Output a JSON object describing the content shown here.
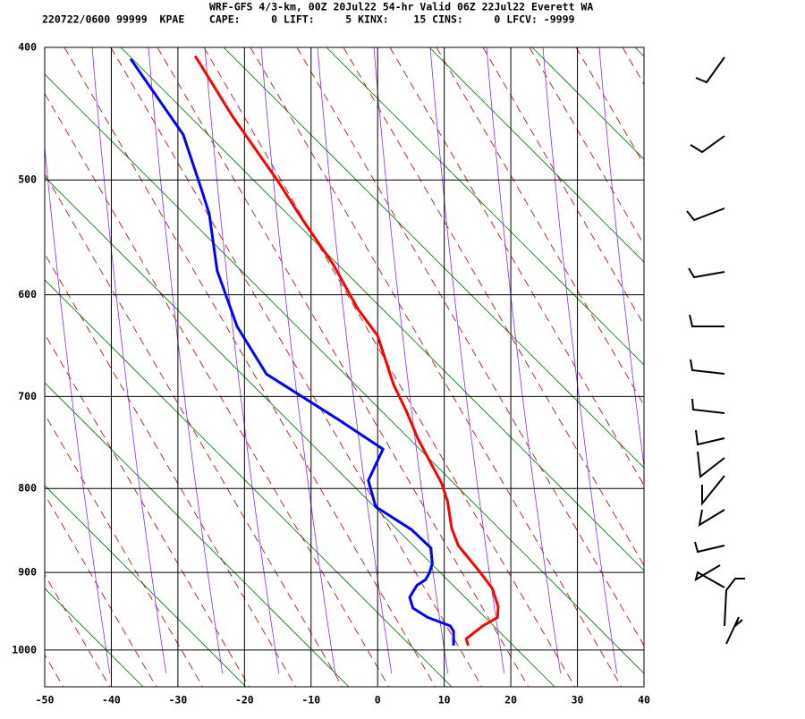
{
  "chart_data": {
    "type": "line",
    "title": "WRF-GFS 4/3-km, 00Z 20Jul22 54-hr Valid 06Z 22Jul22 Everett WA",
    "subtitle": "220722/0600 99999  KPAE    CAPE:     0 LIFT:     5 KINX:    15 CINS:     0 LFCV: -9999",
    "xlim": [
      -50,
      40
    ],
    "xticks": [
      -50,
      -40,
      -30,
      -20,
      -10,
      0,
      10,
      20,
      30,
      40
    ],
    "ylim": [
      400,
      1050
    ],
    "yticks": [
      400,
      500,
      600,
      700,
      800,
      900,
      1000
    ],
    "y_reversed": true,
    "grid": true,
    "series": [
      {
        "color": "#ff0000",
        "x": [
          13.6,
          13.3,
          15.8,
          18.0,
          18.1,
          17.2,
          15.4,
          12.1,
          11.1,
          10.5,
          9.6,
          7.8,
          6.0,
          4.3,
          2.4,
          0.0,
          -3.0,
          -6.7,
          -11.3,
          -15.1,
          -18.4,
          -21.8,
          -27.4
        ],
        "values": [
          994,
          985,
          968,
          957,
          943,
          920,
          900,
          867,
          846,
          815,
          794,
          769,
          744,
          715,
          688,
          639,
          613,
          572,
          533,
          500,
          475,
          450,
          406
        ]
      },
      {
        "color": "#0000ff",
        "x": [
          11.4,
          11.4,
          10.9,
          7.5,
          5.3,
          4.8,
          5.9,
          7.2,
          7.8,
          8.2,
          8.0,
          5.1,
          -0.3,
          -1.4,
          0.8,
          -5.7,
          -16.7,
          -21.1,
          -24.1,
          -25.3,
          -26.5,
          -29.2,
          -37.1
        ],
        "values": [
          994,
          975,
          968,
          957,
          945,
          931,
          916,
          909,
          900,
          889,
          870,
          848,
          821,
          791,
          756,
          725,
          677,
          630,
          578,
          528,
          507,
          464,
          408
        ]
      }
    ]
  }
}
